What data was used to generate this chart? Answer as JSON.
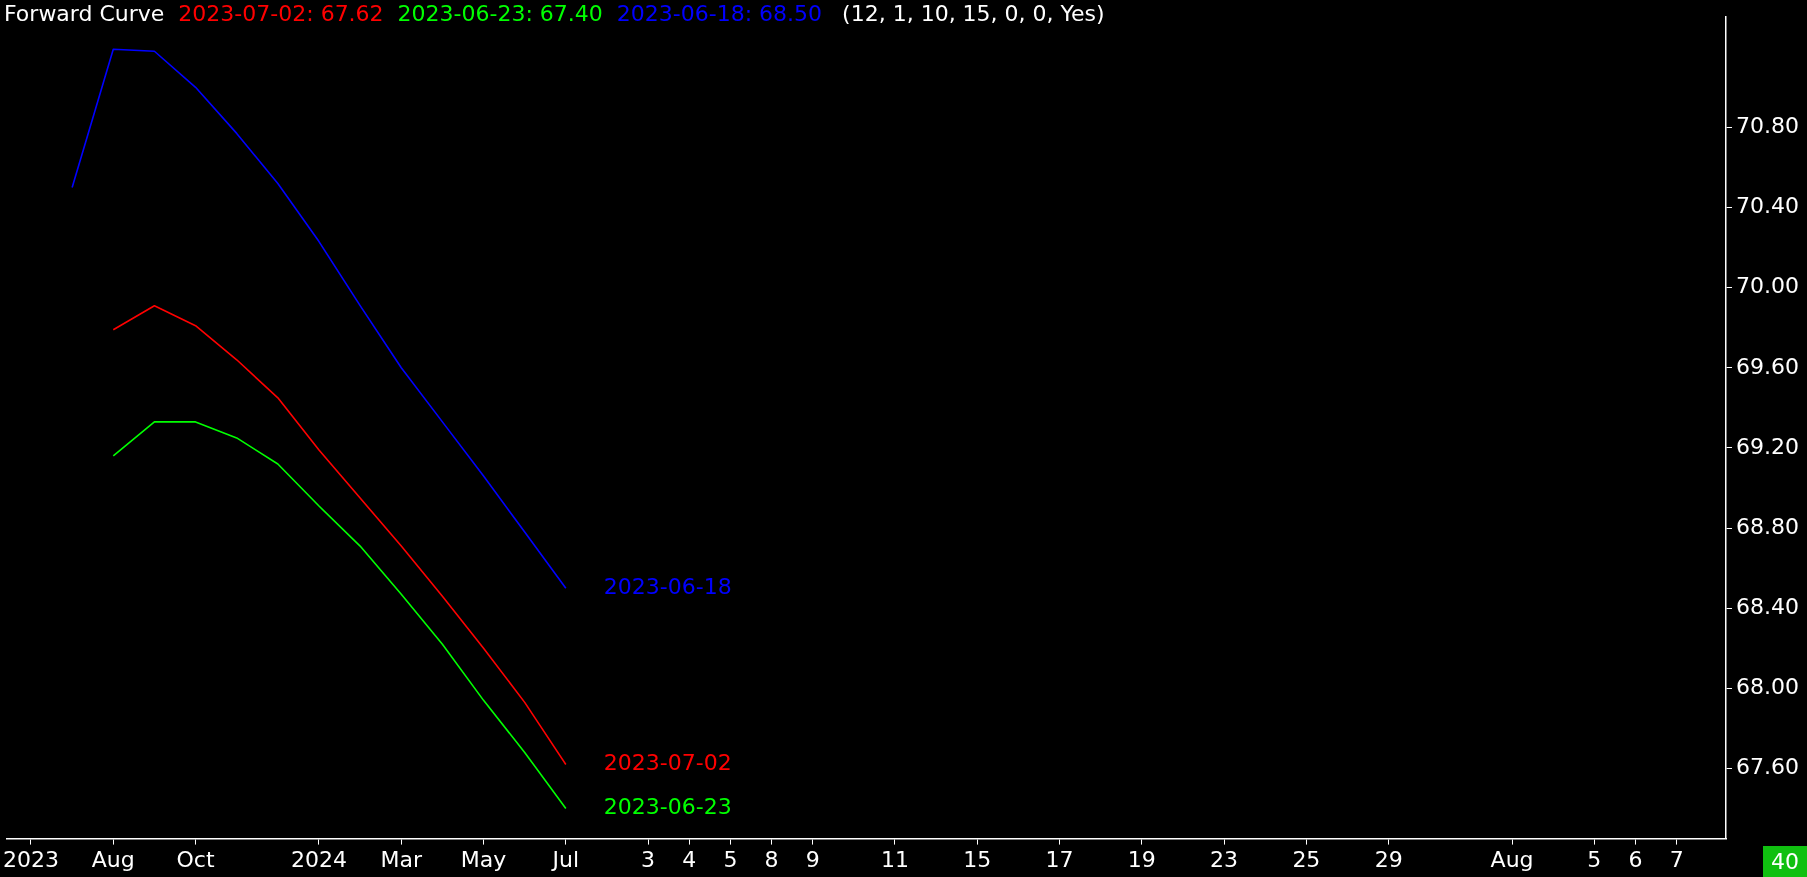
{
  "chart_data": {
    "type": "line",
    "title": "Forward Curve",
    "subtitle": "(12, 1, 10, 15, 0, 0, Yes)",
    "categories": [
      "2023",
      null,
      "Aug",
      null,
      "Oct",
      null,
      null,
      "2024",
      null,
      "Mar",
      null,
      "May",
      null,
      "Jul",
      null,
      "3",
      "4",
      "5",
      "8",
      "9",
      null,
      "11",
      null,
      "15",
      null,
      "17",
      null,
      "19",
      null,
      "23",
      null,
      "25",
      null,
      "29",
      null,
      null,
      "Aug",
      null,
      "5",
      "6",
      "7"
    ],
    "series": [
      {
        "name": "2023-07-02",
        "color": "#ff0000",
        "values": [
          null,
          null,
          69.79,
          69.91,
          69.81,
          69.64,
          69.45,
          69.19,
          68.95,
          68.71,
          68.46,
          68.2,
          67.93,
          67.62,
          null,
          null,
          null,
          null,
          null,
          null,
          null,
          null,
          null,
          null,
          null,
          null,
          null,
          null,
          null,
          null,
          null,
          null,
          null,
          null,
          null,
          null,
          null,
          null,
          null,
          null,
          null
        ]
      },
      {
        "name": "2023-06-23",
        "color": "#00ff00",
        "values": [
          null,
          null,
          69.16,
          69.33,
          69.33,
          69.25,
          69.12,
          68.91,
          68.71,
          68.47,
          68.22,
          67.94,
          67.68,
          67.4,
          null,
          null,
          null,
          null,
          null,
          null,
          null,
          null,
          null,
          null,
          null,
          null,
          null,
          null,
          null,
          null,
          null,
          null,
          null,
          null,
          null,
          null,
          null,
          null,
          null,
          null,
          null
        ]
      },
      {
        "name": "2023-06-18",
        "color": "#0000ff",
        "values": [
          null,
          70.5,
          71.19,
          71.18,
          71.0,
          70.77,
          70.52,
          70.23,
          69.91,
          69.6,
          69.33,
          69.06,
          68.78,
          68.5,
          null,
          null,
          null,
          null,
          null,
          null,
          null,
          null,
          null,
          null,
          null,
          null,
          null,
          null,
          null,
          null,
          null,
          null,
          null,
          null,
          null,
          null,
          null,
          null,
          null,
          null,
          null
        ]
      }
    ],
    "ylim": [
      67.25,
      71.35
    ],
    "yticks": [
      {
        "value": 67.6,
        "label": "67.60"
      },
      {
        "value": 68.0,
        "label": "68.00"
      },
      {
        "value": 68.4,
        "label": "68.40"
      },
      {
        "value": 68.8,
        "label": "68.80"
      },
      {
        "value": 69.2,
        "label": "69.20"
      },
      {
        "value": 69.6,
        "label": "69.60"
      },
      {
        "value": 70.0,
        "label": "70.00"
      },
      {
        "value": 70.4,
        "label": "70.40"
      },
      {
        "value": 70.8,
        "label": "70.80"
      }
    ],
    "grid": false,
    "marker": "none",
    "line_style": "solid",
    "annotations": [
      "2023-07-02: 67.62",
      "2023-06-23: 67.40",
      "2023-06-18: 68.50",
      "40"
    ]
  }
}
